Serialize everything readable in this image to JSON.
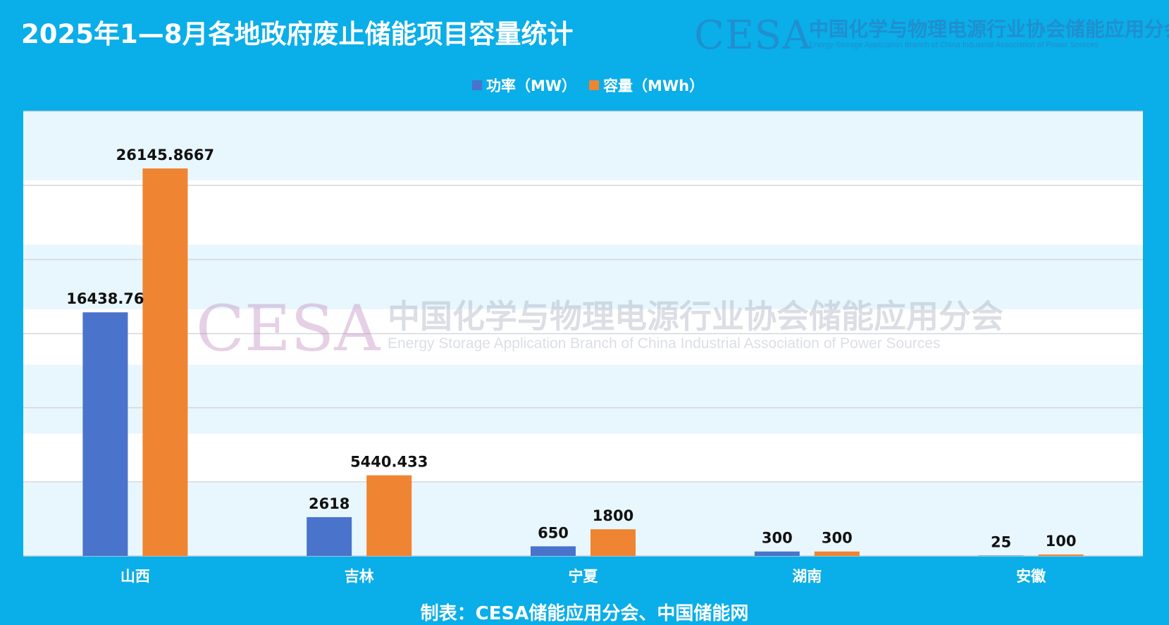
{
  "title": "2025年1—8月各地政府废止储能项目容量统计",
  "brand": {
    "logo": "CESA",
    "name_cn": "中国化学与物理电源行业协会储能应用分会",
    "name_en": "Energy Storage Application Branch of China Industrial Association of Power Sources"
  },
  "watermark": {
    "logo": "CESA",
    "name_cn": "中国化学与物理电源行业协会储能应用分会",
    "name_en": "Energy Storage Application Branch of China Industrial Association of Power Sources"
  },
  "footer": "制表：CESA储能应用分会、中国储能网",
  "colors": {
    "background": "#0aaee8",
    "power": "#4a73cc",
    "capacity": "#ef8432"
  },
  "chart_data": {
    "type": "bar",
    "title": "2025年1—8月各地政府废止储能项目容量统计",
    "xlabel": "",
    "ylabel": "",
    "categories": [
      "山西",
      "吉林",
      "宁夏",
      "湖南",
      "安徽"
    ],
    "series": [
      {
        "name": "功率（MW）",
        "values": [
          16438.76,
          2618,
          650,
          300,
          25
        ],
        "labels": [
          "16438.76",
          "2618",
          "650",
          "300",
          "25"
        ],
        "color": "#4a73cc"
      },
      {
        "name": "容量（MWh）",
        "values": [
          26145.8667,
          5440.433,
          1800,
          300,
          100
        ],
        "labels": [
          "26145.8667",
          "5440.433",
          "1800",
          "300",
          "100"
        ],
        "color": "#ef8432"
      }
    ],
    "ylim": [
      0,
      30000
    ],
    "grid": true,
    "legend": "top-center"
  }
}
